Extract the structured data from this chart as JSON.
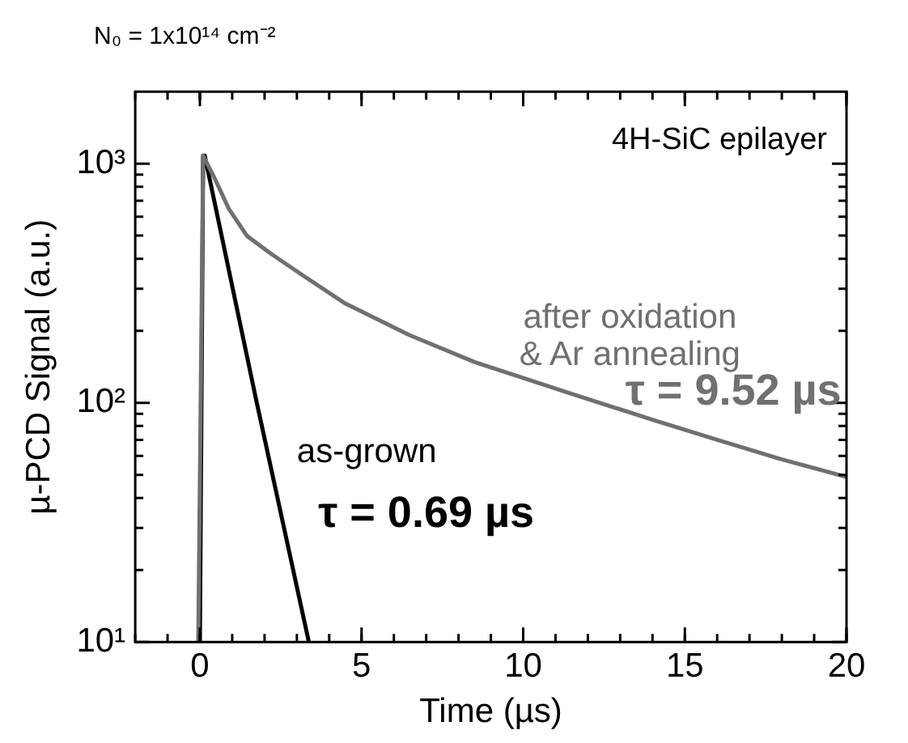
{
  "chart_data": {
    "type": "line",
    "title": "N₀ = 1x10¹⁴ cm⁻²",
    "xlabel": "Time (µs)",
    "ylabel": "µ-PCD Signal (a.u.)",
    "log": "y",
    "xlim": [
      -2,
      20
    ],
    "xticks": [
      0,
      5,
      10,
      15,
      20
    ],
    "ylim": [
      10,
      2000
    ],
    "yticks": [
      {
        "value": 10,
        "label": "10¹"
      },
      {
        "value": 100,
        "label": "10²"
      },
      {
        "value": 1000,
        "label": "10³"
      }
    ],
    "grid": false,
    "legend": false,
    "marker": "none",
    "line_style": "solid",
    "series": [
      {
        "name": "after oxidation & Ar annealing",
        "color": "#707070",
        "x": [
          -0.05,
          0.1,
          0.45,
          0.9,
          1.46,
          2.2,
          3.1,
          4.5,
          6.48,
          8.5,
          11.5,
          14,
          16,
          18,
          20
        ],
        "values": [
          10,
          1080,
          872,
          645,
          498,
          420,
          347,
          260,
          192,
          148,
          109,
          85,
          70,
          58,
          49
        ]
      },
      {
        "name": "as-grown",
        "color": "#000000",
        "x": [
          0,
          0.1,
          0.15,
          1.76,
          3.37
        ],
        "values": [
          10,
          1080,
          1080,
          100,
          10
        ]
      }
    ],
    "annotations": [
      "4H-SiC epilayer",
      "τ = 9.52 µs",
      "τ = 0.69 µs"
    ]
  }
}
